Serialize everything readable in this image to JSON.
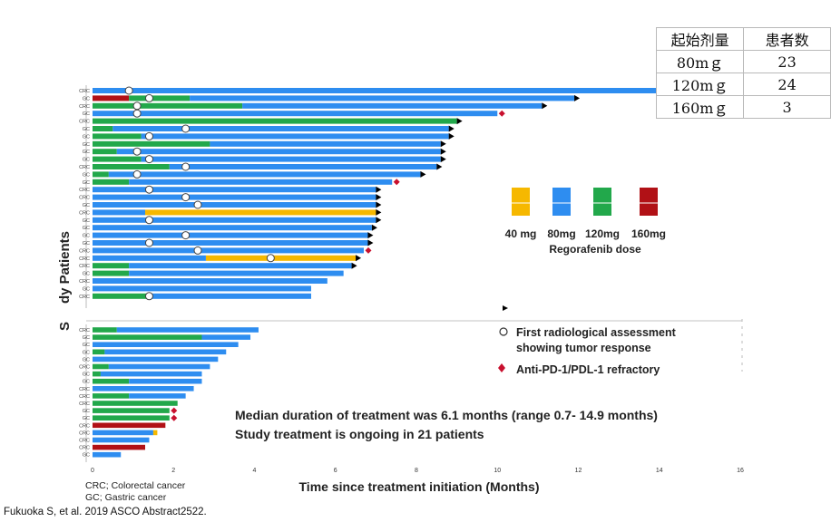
{
  "table": {
    "headers": [
      "起始剂量",
      "患者数"
    ],
    "rows": [
      {
        "dose": "80mｇ",
        "n": "23"
      },
      {
        "dose": "120mｇ",
        "n": "24"
      },
      {
        "dose": "160mｇ",
        "n": "3"
      }
    ]
  },
  "citation": "Fukuoka S, et al. 2019 ASCO Abstract2522.",
  "abbreviations": [
    "CRC; Colorectal cancer",
    "GC; Gastric cancer"
  ],
  "chart_data": {
    "type": "bar",
    "orientation": "horizontal",
    "xlabel": "Time since treatment initiation (Months)",
    "ylabel": "dy Patients",
    "ylabel_lower": "S",
    "xlim": [
      0,
      16
    ],
    "x_ticks": [
      0,
      2,
      4,
      6,
      8,
      10,
      12,
      14,
      16
    ],
    "legend_title": "Regorafenib dose",
    "dose_legend": [
      {
        "label": "40 mg",
        "color": "#f6b800"
      },
      {
        "label": "80mg",
        "color": "#2e8df0"
      },
      {
        "label": "120mg",
        "color": "#22a84b"
      },
      {
        "label": "160mg",
        "color": "#b11116"
      }
    ],
    "marker_legend": [
      {
        "symbol": "circle",
        "label": "First radiological assessment",
        "label2": "showing tumor response"
      },
      {
        "symbol": "diamond",
        "label": "Anti-PD-1/PDL-1 refractory"
      }
    ],
    "annotation": [
      "Median duration of treatment was 6.1 months (range 0.7- 14.9 months)",
      "Study treatment is ongoing in 21 patients"
    ],
    "dose_colors": {
      "40": "#f6b800",
      "80": "#2e8df0",
      "120": "#22a84b",
      "160": "#b11116"
    },
    "patients_upper": [
      {
        "type": "CRC",
        "segments": [
          [
            80,
            14.9
          ]
        ],
        "ongoing": true,
        "response": 0.9
      },
      {
        "type": "GC",
        "segments": [
          [
            160,
            0.9
          ],
          [
            120,
            2.4
          ],
          [
            80,
            11.9
          ]
        ],
        "ongoing": true,
        "response": 1.4
      },
      {
        "type": "CRC",
        "segments": [
          [
            120,
            3.7
          ],
          [
            80,
            11.1
          ]
        ],
        "ongoing": true,
        "response": 1.1
      },
      {
        "type": "GC",
        "segments": [
          [
            80,
            10.0
          ]
        ],
        "pd1": true,
        "response": 1.1
      },
      {
        "type": "CRC",
        "segments": [
          [
            120,
            9.0
          ]
        ],
        "ongoing": true
      },
      {
        "type": "GC",
        "segments": [
          [
            120,
            0.5
          ],
          [
            80,
            8.8
          ]
        ],
        "ongoing": true,
        "response": 2.3
      },
      {
        "type": "GC",
        "segments": [
          [
            120,
            1.2
          ],
          [
            80,
            8.8
          ]
        ],
        "ongoing": true,
        "response": 1.4
      },
      {
        "type": "GC",
        "segments": [
          [
            120,
            2.9
          ],
          [
            80,
            8.6
          ]
        ],
        "ongoing": true
      },
      {
        "type": "GC",
        "segments": [
          [
            120,
            0.6
          ],
          [
            80,
            8.6
          ]
        ],
        "ongoing": true,
        "response": 1.1
      },
      {
        "type": "GC",
        "segments": [
          [
            120,
            1.2
          ],
          [
            80,
            8.6
          ]
        ],
        "ongoing": true,
        "response": 1.4
      },
      {
        "type": "CRC",
        "segments": [
          [
            120,
            1.9
          ],
          [
            80,
            8.5
          ]
        ],
        "ongoing": true,
        "response": 2.3
      },
      {
        "type": "GC",
        "segments": [
          [
            120,
            0.4
          ],
          [
            80,
            8.1
          ]
        ],
        "ongoing": true,
        "response": 1.1
      },
      {
        "type": "GC",
        "segments": [
          [
            120,
            0.9
          ],
          [
            80,
            7.4
          ]
        ],
        "pd1": true
      },
      {
        "type": "CRC",
        "segments": [
          [
            80,
            7.0
          ]
        ],
        "ongoing": true,
        "response": 1.4
      },
      {
        "type": "CRC",
        "segments": [
          [
            80,
            7.0
          ]
        ],
        "ongoing": true,
        "response": 2.3
      },
      {
        "type": "GC",
        "segments": [
          [
            80,
            7.0
          ]
        ],
        "ongoing": true,
        "response": 2.6
      },
      {
        "type": "CRC",
        "segments": [
          [
            80,
            1.3
          ],
          [
            40,
            7.0
          ]
        ],
        "ongoing": true
      },
      {
        "type": "GC",
        "segments": [
          [
            80,
            7.0
          ]
        ],
        "ongoing": true,
        "response": 1.4
      },
      {
        "type": "GC",
        "segments": [
          [
            80,
            6.9
          ]
        ],
        "ongoing": true
      },
      {
        "type": "GC",
        "segments": [
          [
            80,
            6.8
          ]
        ],
        "ongoing": true,
        "response": 2.3
      },
      {
        "type": "GC",
        "segments": [
          [
            80,
            6.8
          ]
        ],
        "ongoing": true,
        "response": 1.4
      },
      {
        "type": "CRC",
        "segments": [
          [
            80,
            6.7
          ]
        ],
        "pd1": true,
        "response": 2.6
      },
      {
        "type": "CRC",
        "segments": [
          [
            80,
            2.8
          ],
          [
            40,
            6.5
          ]
        ],
        "ongoing": true,
        "response": 4.4
      },
      {
        "type": "CRC",
        "segments": [
          [
            120,
            0.9
          ],
          [
            80,
            6.4
          ]
        ],
        "ongoing": true
      },
      {
        "type": "GC",
        "segments": [
          [
            120,
            0.9
          ],
          [
            80,
            6.2
          ]
        ]
      },
      {
        "type": "CRC",
        "segments": [
          [
            80,
            5.8
          ]
        ]
      },
      {
        "type": "GC",
        "segments": [
          [
            80,
            5.4
          ]
        ]
      },
      {
        "type": "CRC",
        "segments": [
          [
            120,
            1.4
          ],
          [
            80,
            5.4
          ]
        ],
        "response": 1.4
      }
    ],
    "patients_lower": [
      {
        "type": "CRC",
        "segments": [
          [
            120,
            0.6
          ],
          [
            80,
            4.1
          ]
        ]
      },
      {
        "type": "GC",
        "segments": [
          [
            120,
            2.7
          ],
          [
            80,
            3.9
          ]
        ]
      },
      {
        "type": "GC",
        "segments": [
          [
            80,
            3.6
          ]
        ]
      },
      {
        "type": "GC",
        "segments": [
          [
            120,
            0.3
          ],
          [
            80,
            3.3
          ]
        ]
      },
      {
        "type": "GC",
        "segments": [
          [
            80,
            3.1
          ]
        ]
      },
      {
        "type": "CRC",
        "segments": [
          [
            120,
            0.4
          ],
          [
            80,
            2.9
          ]
        ]
      },
      {
        "type": "GC",
        "segments": [
          [
            120,
            0.2
          ],
          [
            80,
            2.7
          ]
        ]
      },
      {
        "type": "GC",
        "segments": [
          [
            120,
            0.9
          ],
          [
            80,
            2.7
          ]
        ]
      },
      {
        "type": "CRC",
        "segments": [
          [
            80,
            2.5
          ]
        ]
      },
      {
        "type": "CRC",
        "segments": [
          [
            120,
            0.9
          ],
          [
            80,
            2.3
          ]
        ]
      },
      {
        "type": "CRC",
        "segments": [
          [
            120,
            2.1
          ],
          [
            80,
            2.1
          ]
        ]
      },
      {
        "type": "GC",
        "segments": [
          [
            120,
            1.9
          ]
        ],
        "pd1": true
      },
      {
        "type": "GC",
        "segments": [
          [
            120,
            1.9
          ]
        ],
        "pd1": true
      },
      {
        "type": "CRC",
        "segments": [
          [
            160,
            1.8
          ]
        ]
      },
      {
        "type": "CRC",
        "segments": [
          [
            80,
            1.5
          ],
          [
            40,
            1.6
          ]
        ]
      },
      {
        "type": "CRC",
        "segments": [
          [
            80,
            1.4
          ]
        ]
      },
      {
        "type": "CRC",
        "segments": [
          [
            160,
            1.3
          ]
        ]
      },
      {
        "type": "GC",
        "segments": [
          [
            80,
            0.7
          ]
        ]
      }
    ]
  }
}
